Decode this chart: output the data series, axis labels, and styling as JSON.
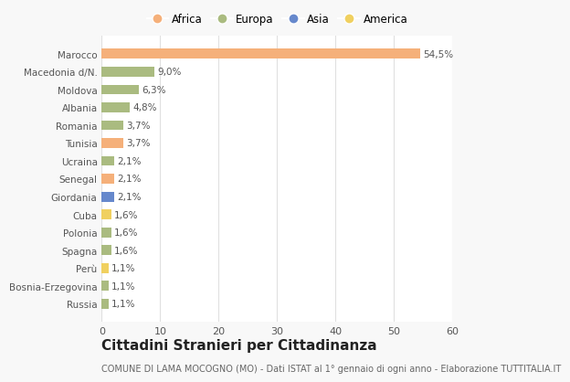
{
  "categories": [
    "Russia",
    "Bosnia-Erzegovina",
    "Perù",
    "Spagna",
    "Polonia",
    "Cuba",
    "Giordania",
    "Senegal",
    "Ucraina",
    "Tunisia",
    "Romania",
    "Albania",
    "Moldova",
    "Macedonia d/N.",
    "Marocco"
  ],
  "values": [
    1.1,
    1.1,
    1.1,
    1.6,
    1.6,
    1.6,
    2.1,
    2.1,
    2.1,
    3.7,
    3.7,
    4.8,
    6.3,
    9.0,
    54.5
  ],
  "labels": [
    "1,1%",
    "1,1%",
    "1,1%",
    "1,6%",
    "1,6%",
    "1,6%",
    "2,1%",
    "2,1%",
    "2,1%",
    "3,7%",
    "3,7%",
    "4,8%",
    "6,3%",
    "9,0%",
    "54,5%"
  ],
  "continents": [
    "Europa",
    "Europa",
    "America",
    "Europa",
    "Europa",
    "America",
    "Asia",
    "Africa",
    "Europa",
    "Africa",
    "Europa",
    "Europa",
    "Europa",
    "Europa",
    "Africa"
  ],
  "continent_colors": {
    "Africa": "#F5B07A",
    "Europa": "#AABB80",
    "Asia": "#6688CC",
    "America": "#F0D060"
  },
  "legend_order": [
    "Africa",
    "Europa",
    "Asia",
    "America"
  ],
  "background_color": "#F8F8F8",
  "plot_bg_color": "#FFFFFF",
  "title": "Cittadini Stranieri per Cittadinanza",
  "subtitle": "COMUNE DI LAMA MOCOGNO (MO) - Dati ISTAT al 1° gennaio di ogni anno - Elaborazione TUTTITALIA.IT",
  "xlim": [
    0,
    60
  ],
  "xticks": [
    0,
    10,
    20,
    30,
    40,
    50,
    60
  ],
  "grid_color": "#E0E0E0",
  "bar_height": 0.55,
  "label_fontsize": 7.5,
  "ytick_fontsize": 7.5,
  "xtick_fontsize": 8,
  "title_fontsize": 11,
  "subtitle_fontsize": 7
}
